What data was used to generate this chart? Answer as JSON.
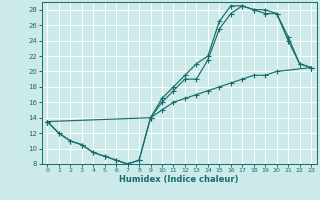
{
  "xlabel": "Humidex (Indice chaleur)",
  "bg_color": "#cceaea",
  "grid_color": "#ffffff",
  "line_color": "#1a6b6b",
  "xlim": [
    -0.5,
    23.5
  ],
  "ylim": [
    8,
    29
  ],
  "xticks": [
    0,
    1,
    2,
    3,
    4,
    5,
    6,
    7,
    8,
    9,
    10,
    11,
    12,
    13,
    14,
    15,
    16,
    17,
    18,
    19,
    20,
    21,
    22,
    23
  ],
  "yticks": [
    8,
    10,
    12,
    14,
    16,
    18,
    20,
    22,
    24,
    26,
    28
  ],
  "line1_x": [
    0,
    1,
    2,
    3,
    4,
    5,
    6,
    7,
    8,
    9,
    10,
    11,
    12,
    13,
    14,
    15,
    16,
    17,
    18,
    19,
    20,
    21,
    22,
    23
  ],
  "line1_y": [
    13.5,
    12,
    11,
    10.5,
    9.5,
    9,
    8.5,
    8,
    8.5,
    14,
    16,
    17.5,
    19,
    19,
    21.5,
    25.5,
    27.5,
    28.5,
    28,
    28,
    27.5,
    24,
    21,
    20.5
  ],
  "line2_x": [
    0,
    1,
    2,
    3,
    4,
    5,
    6,
    7,
    8,
    9,
    10,
    11,
    12,
    13,
    14,
    15,
    16,
    17,
    18,
    19,
    20,
    21,
    22,
    23
  ],
  "line2_y": [
    13.5,
    12,
    11,
    10.5,
    9.5,
    9,
    8.5,
    8,
    8.5,
    14,
    16.5,
    18,
    19.5,
    21,
    22,
    26.5,
    28.5,
    28.5,
    28,
    27.5,
    27.5,
    24.5,
    21,
    20.5
  ],
  "line3_x": [
    0,
    9,
    10,
    11,
    12,
    13,
    14,
    15,
    16,
    17,
    18,
    19,
    20,
    23
  ],
  "line3_y": [
    13.5,
    14,
    15,
    16,
    16.5,
    17,
    17.5,
    18,
    18.5,
    19,
    19.5,
    19.5,
    20,
    20.5
  ]
}
